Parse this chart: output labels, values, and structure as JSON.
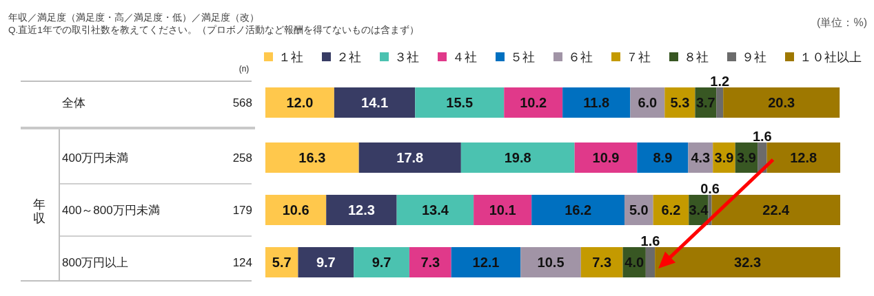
{
  "chart_data": {
    "type": "bar",
    "orientation": "horizontal",
    "stacked": true,
    "title": "年収／満足度（満足度・高／満足度・低）／満足度（改）",
    "subtitle": "Q.直近1年での取引社数を教えてください。（プロボノ活動など報酬を得てないものは含まず）",
    "annotations": [
      "(単位：%)",
      "年収"
    ],
    "categories": [
      "全体",
      "400万円未満",
      "400～800万円未満",
      "800万円以上"
    ],
    "y2label": "(n)",
    "y2_categories": [
      "568",
      "258",
      "179",
      "124"
    ],
    "legend": "top",
    "series": [
      {
        "name": "１社",
        "color": "#ffc84c",
        "values": [
          12.0,
          16.3,
          10.6,
          5.7
        ],
        "value_labels": [
          "12.0",
          "16.3",
          "10.6",
          "5.7"
        ]
      },
      {
        "name": "２社",
        "color": "#383c64",
        "values": [
          14.1,
          17.8,
          12.3,
          9.7
        ],
        "value_labels": [
          "14.1",
          "17.8",
          "12.3",
          "9.7"
        ]
      },
      {
        "name": "３社",
        "color": "#4bc2b0",
        "values": [
          15.5,
          19.8,
          13.4,
          9.7
        ],
        "value_labels": [
          "15.5",
          "19.8",
          "13.4",
          "9.7"
        ]
      },
      {
        "name": "４社",
        "color": "#e0398a",
        "values": [
          10.2,
          10.9,
          10.1,
          7.3
        ],
        "value_labels": [
          "10.2",
          "10.9",
          "10.1",
          "7.3"
        ]
      },
      {
        "name": "５社",
        "color": "#0070c0",
        "values": [
          11.8,
          8.9,
          16.2,
          12.1
        ],
        "value_labels": [
          "11.8",
          "8.9",
          "16.2",
          "12.1"
        ]
      },
      {
        "name": "６社",
        "color": "#a194a6",
        "values": [
          6.0,
          4.3,
          5.0,
          10.5
        ],
        "value_labels": [
          "6.0",
          "4.3",
          "5.0",
          "10.5"
        ]
      },
      {
        "name": "７社",
        "color": "#c49a00",
        "values": [
          5.3,
          3.9,
          6.2,
          7.3
        ],
        "value_labels": [
          "5.3",
          "3.9",
          "6.2",
          "7.3"
        ]
      },
      {
        "name": "８社",
        "color": "#385723",
        "values": [
          3.7,
          3.9,
          3.4,
          4.0
        ],
        "value_labels": [
          "3.7",
          "3.9",
          "3.4",
          "4.0"
        ]
      },
      {
        "name": "９社",
        "color": "#6b6b6b",
        "values": [
          1.2,
          1.6,
          0.6,
          1.6
        ],
        "value_labels": [
          "1.2",
          "1.6",
          "0.6",
          "1.6"
        ]
      },
      {
        "name": "１０社以上",
        "color": "#9e7800",
        "values": [
          20.3,
          12.8,
          22.4,
          32.3
        ],
        "value_labels": [
          "20.3",
          "12.8",
          "22.4",
          "32.3"
        ]
      }
    ]
  }
}
